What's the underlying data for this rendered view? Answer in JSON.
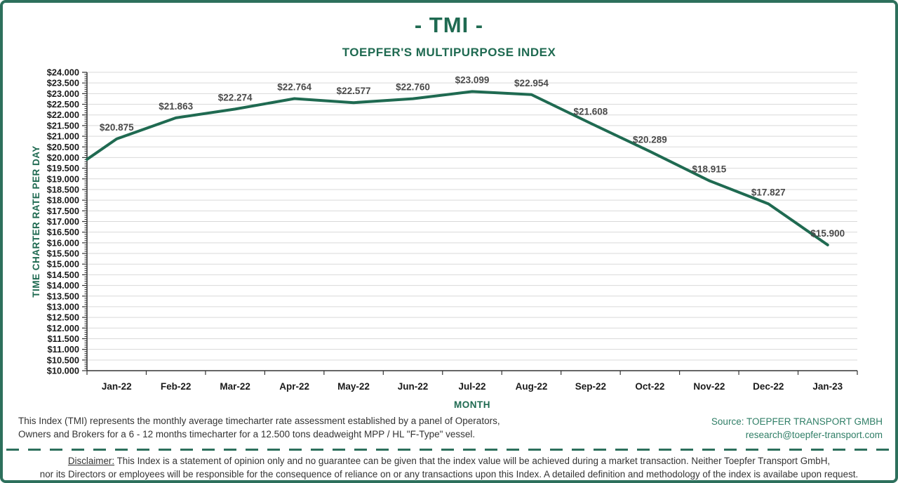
{
  "header": {
    "title": "- TMI -",
    "subtitle": "TOEPFER'S MULTIPURPOSE INDEX"
  },
  "chart_data": {
    "type": "line",
    "title": "- TMI -",
    "subtitle": "TOEPFER'S MULTIPURPOSE INDEX",
    "xlabel": "MONTH",
    "ylabel": "TIME CHARTER RATE PER DAY",
    "categories": [
      "Jan-22",
      "Feb-22",
      "Mar-22",
      "Apr-22",
      "May-22",
      "Jun-22",
      "Jul-22",
      "Aug-22",
      "Sep-22",
      "Oct-22",
      "Nov-22",
      "Dec-22",
      "Jan-23"
    ],
    "values": [
      20875,
      21863,
      22274,
      22764,
      22577,
      22760,
      23099,
      22954,
      21608,
      20289,
      18915,
      17827,
      15900
    ],
    "point_labels": [
      "$20.875",
      "$21.863",
      "$22.274",
      "$22.764",
      "$22.577",
      "$22.760",
      "$23.099",
      "$22.954",
      "$21.608",
      "$20.289",
      "$18.915",
      "$17.827",
      "$15.900"
    ],
    "edge_entry_value": 19916,
    "ylim": [
      10000,
      24000
    ],
    "ytick_step": 500,
    "ytick_labels": [
      "$24.000",
      "$23.500",
      "$23.000",
      "$22.500",
      "$22.000",
      "$21.500",
      "$21.000",
      "$20.500",
      "$20.000",
      "$19.500",
      "$19.000",
      "$18.500",
      "$18.000",
      "$17.500",
      "$17.000",
      "$16.500",
      "$16.000",
      "$15.500",
      "$15.000",
      "$14.500",
      "$14.000",
      "$13.500",
      "$13.000",
      "$12.500",
      "$12.000",
      "$11.500",
      "$11.000",
      "$10.500",
      "$10.000"
    ],
    "grid": "horizontal",
    "legend": "none",
    "line_color": "#1F6A51",
    "colors": {
      "grid": "#D9D9D9",
      "axis": "#333333",
      "tick_text": "#1A1A1A",
      "data_label": "#4A4A4A",
      "axis_title": "#1F6A51"
    }
  },
  "footer": {
    "description_line1": "This Index (TMI) represents the monthly average timecharter rate assessment established by a panel of Operators,",
    "description_line2": "Owners and Brokers for a 6 - 12 months timecharter for a 12.500 tons deadweight MPP / HL \"F-Type\" vessel.",
    "source": "Source: TOEPFER TRANSPORT GMBH",
    "email": "research@toepfer-transport.com"
  },
  "disclaimer": {
    "label": "Disclaimer:",
    "line1": " This Index is a statement of opinion only and no guarantee can be given that the index value will be achieved during a market transaction. Neither Toepfer Transport GmbH,",
    "line2": "nor its Directors or employees will be responsible for the consequence of reliance on or any transactions upon this Index.  A detailed definition and methodology of the index is availabe upon request."
  },
  "colors": {
    "brand_green": "#1F6A51",
    "border_green": "#2D705C",
    "source_green": "#2F7E66",
    "body_text": "#333333",
    "background": "#FFFFFF"
  }
}
